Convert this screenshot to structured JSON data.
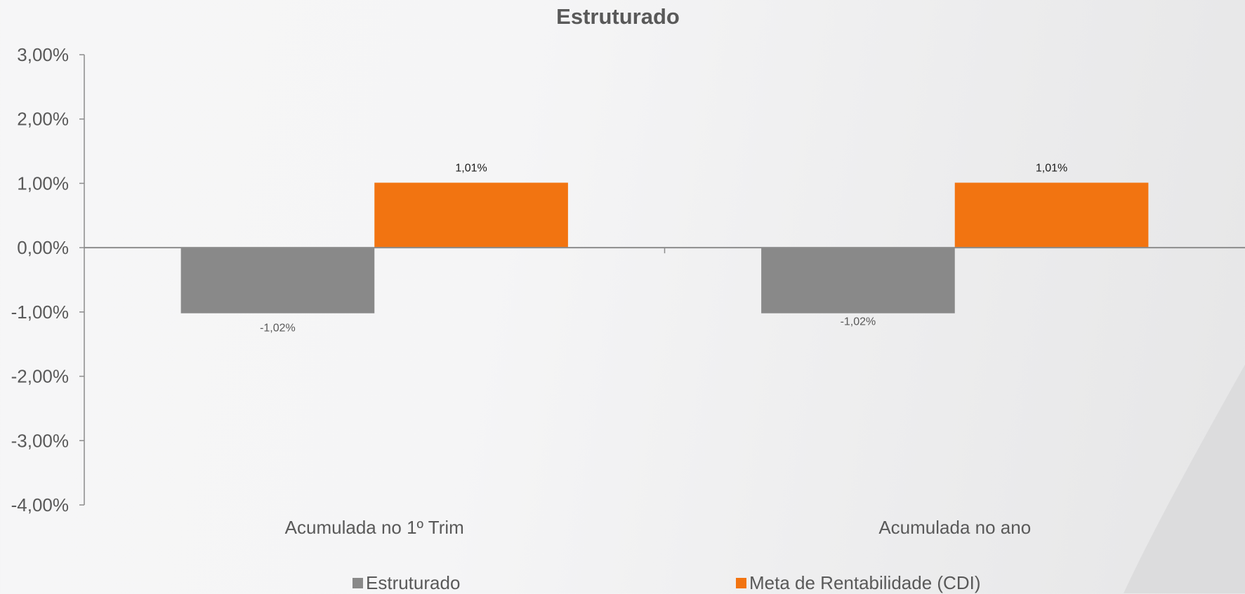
{
  "chart_data": {
    "type": "bar",
    "title": "Estruturado",
    "categories": [
      "Acumulada no 1º Trim",
      "Acumulada no ano"
    ],
    "series": [
      {
        "name": "Estruturado",
        "color": "#898989",
        "values": [
          -1.02,
          -1.02
        ],
        "labels": [
          "-1,02%",
          "-1,02%"
        ]
      },
      {
        "name": "Meta de Rentabilidade (CDI)",
        "color": "#f27411",
        "values": [
          1.01,
          1.01
        ],
        "labels": [
          "1,01%",
          "1,01%"
        ]
      }
    ],
    "ylim": [
      -4,
      3
    ],
    "yticks": [
      3,
      2,
      1,
      0,
      -1,
      -2,
      -3,
      -4
    ],
    "ytick_labels": [
      "3,00%",
      "2,00%",
      "1,00%",
      "0,00%",
      "-1,00%",
      "-2,00%",
      "-3,00%",
      "-4,00%"
    ],
    "xlabel": "",
    "ylabel": "",
    "grid": false,
    "legend_position": "bottom"
  }
}
